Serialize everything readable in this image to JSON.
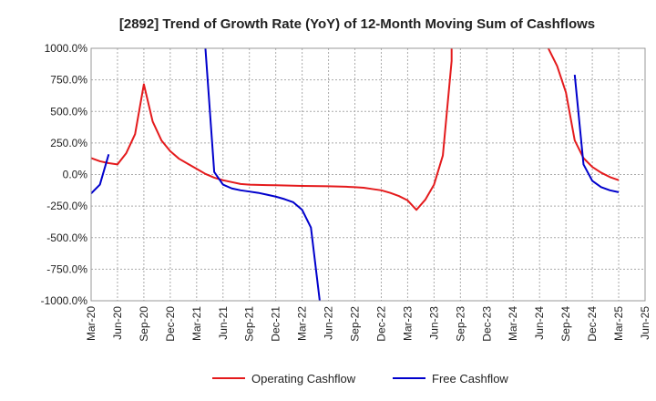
{
  "chart_data": {
    "type": "line",
    "title": "[2892]  Trend of Growth Rate (YoY) of 12-Month Moving Sum of Cashflows",
    "xlabel": "",
    "ylabel": "",
    "ylim": [
      -1000,
      1000
    ],
    "yticks": [
      1000,
      750,
      500,
      250,
      0,
      -250,
      -500,
      -750,
      -1000
    ],
    "ytick_labels": [
      "1000.0%",
      "750.0%",
      "500.0%",
      "250.0%",
      "0.0%",
      "-250.0%",
      "-500.0%",
      "-750.0%",
      "-1000.0%"
    ],
    "x_months": [
      "Mar-20",
      "Apr-20",
      "May-20",
      "Jun-20",
      "Jul-20",
      "Aug-20",
      "Sep-20",
      "Oct-20",
      "Nov-20",
      "Dec-20",
      "Jan-21",
      "Feb-21",
      "Mar-21",
      "Apr-21",
      "May-21",
      "Jun-21",
      "Jul-21",
      "Aug-21",
      "Sep-21",
      "Oct-21",
      "Nov-21",
      "Dec-21",
      "Jan-22",
      "Feb-22",
      "Mar-22",
      "Apr-22",
      "May-22",
      "Jun-22",
      "Jul-22",
      "Aug-22",
      "Sep-22",
      "Oct-22",
      "Nov-22",
      "Dec-22",
      "Jan-23",
      "Feb-23",
      "Mar-23",
      "Apr-23",
      "May-23",
      "Jun-23",
      "Jul-23",
      "Aug-23",
      "Sep-23",
      "Oct-23",
      "Nov-23",
      "Dec-23",
      "Jan-24",
      "Feb-24",
      "Mar-24",
      "Apr-24",
      "May-24",
      "Jun-24",
      "Jul-24",
      "Aug-24",
      "Sep-24",
      "Oct-24",
      "Nov-24",
      "Dec-24",
      "Jan-25",
      "Feb-25",
      "Mar-25",
      "Apr-25",
      "May-25",
      "Jun-25"
    ],
    "xtick_labels": [
      "Mar-20",
      "Jun-20",
      "Sep-20",
      "Dec-20",
      "Mar-21",
      "Jun-21",
      "Sep-21",
      "Dec-21",
      "Mar-22",
      "Jun-22",
      "Sep-22",
      "Dec-22",
      "Mar-23",
      "Jun-23",
      "Sep-23",
      "Dec-23",
      "Mar-24",
      "Jun-24",
      "Sep-24",
      "Dec-24",
      "Mar-25",
      "Jun-25"
    ],
    "grid": true,
    "legend_position": "bottom",
    "series": [
      {
        "name": "Operating Cashflow",
        "color": "#e41a1c",
        "points": [
          [
            "Mar-20",
            130
          ],
          [
            "Apr-20",
            105
          ],
          [
            "May-20",
            90
          ],
          [
            "Jun-20",
            80
          ],
          [
            "Jul-20",
            170
          ],
          [
            "Aug-20",
            320
          ],
          [
            "Sep-20",
            715
          ],
          [
            "Oct-20",
            420
          ],
          [
            "Nov-20",
            270
          ],
          [
            "Dec-20",
            185
          ],
          [
            "Jan-21",
            125
          ],
          [
            "Feb-21",
            85
          ],
          [
            "Mar-21",
            45
          ],
          [
            "Apr-21",
            5
          ],
          [
            "May-21",
            -25
          ],
          [
            "Jun-21",
            -45
          ],
          [
            "Jul-21",
            -60
          ],
          [
            "Aug-21",
            -75
          ],
          [
            "Sep-21",
            -80
          ],
          [
            "Oct-21",
            -82
          ],
          [
            "Nov-21",
            -84
          ],
          [
            "Dec-21",
            -85
          ],
          [
            "Jan-22",
            -87
          ],
          [
            "Feb-22",
            -88
          ],
          [
            "Mar-22",
            -90
          ],
          [
            "Apr-22",
            -91
          ],
          [
            "May-22",
            -92
          ],
          [
            "Jun-22",
            -93
          ],
          [
            "Jul-22",
            -95
          ],
          [
            "Aug-22",
            -97
          ],
          [
            "Sep-22",
            -100
          ],
          [
            "Oct-22",
            -105
          ],
          [
            "Nov-22",
            -115
          ],
          [
            "Dec-22",
            -125
          ],
          [
            "Jan-23",
            -145
          ],
          [
            "Feb-23",
            -170
          ],
          [
            "Mar-23",
            -205
          ],
          [
            "Apr-23",
            -280
          ],
          [
            "May-23",
            -200
          ],
          [
            "Jun-23",
            -80
          ],
          [
            "Jul-23",
            150
          ],
          [
            "Aug-23",
            900
          ],
          [
            "Aug-23",
            1000
          ]
        ]
      },
      {
        "name": "Operating Cashflow",
        "color": "#e41a1c",
        "points": [
          [
            "Jul-24",
            1000
          ],
          [
            "Aug-24",
            860
          ],
          [
            "Sep-24",
            650
          ],
          [
            "Oct-24",
            270
          ],
          [
            "Nov-24",
            130
          ],
          [
            "Dec-24",
            60
          ],
          [
            "Jan-25",
            15
          ],
          [
            "Feb-25",
            -20
          ],
          [
            "Mar-25",
            -45
          ]
        ]
      },
      {
        "name": "Free Cashflow",
        "color": "#0000cc",
        "points": [
          [
            "Mar-20",
            -150
          ],
          [
            "Apr-20",
            -80
          ],
          [
            "May-20",
            160
          ]
        ]
      },
      {
        "name": "Free Cashflow",
        "color": "#0000cc",
        "points": [
          [
            "Apr-21",
            1000
          ],
          [
            "May-21",
            20
          ],
          [
            "Jun-21",
            -80
          ],
          [
            "Jul-21",
            -110
          ],
          [
            "Aug-21",
            -125
          ],
          [
            "Sep-21",
            -135
          ],
          [
            "Oct-21",
            -145
          ],
          [
            "Nov-21",
            -160
          ],
          [
            "Dec-21",
            -175
          ],
          [
            "Jan-22",
            -195
          ],
          [
            "Feb-22",
            -220
          ],
          [
            "Mar-22",
            -280
          ],
          [
            "Apr-22",
            -420
          ],
          [
            "May-22",
            -1000
          ]
        ]
      },
      {
        "name": "Free Cashflow",
        "color": "#0000cc",
        "points": [
          [
            "Oct-24",
            790
          ],
          [
            "Nov-24",
            80
          ],
          [
            "Dec-24",
            -50
          ],
          [
            "Jan-25",
            -100
          ],
          [
            "Feb-25",
            -125
          ],
          [
            "Mar-25",
            -140
          ]
        ]
      }
    ],
    "legend": [
      {
        "name": "Operating Cashflow",
        "color": "#e41a1c"
      },
      {
        "name": "Free Cashflow",
        "color": "#0000cc"
      }
    ]
  }
}
